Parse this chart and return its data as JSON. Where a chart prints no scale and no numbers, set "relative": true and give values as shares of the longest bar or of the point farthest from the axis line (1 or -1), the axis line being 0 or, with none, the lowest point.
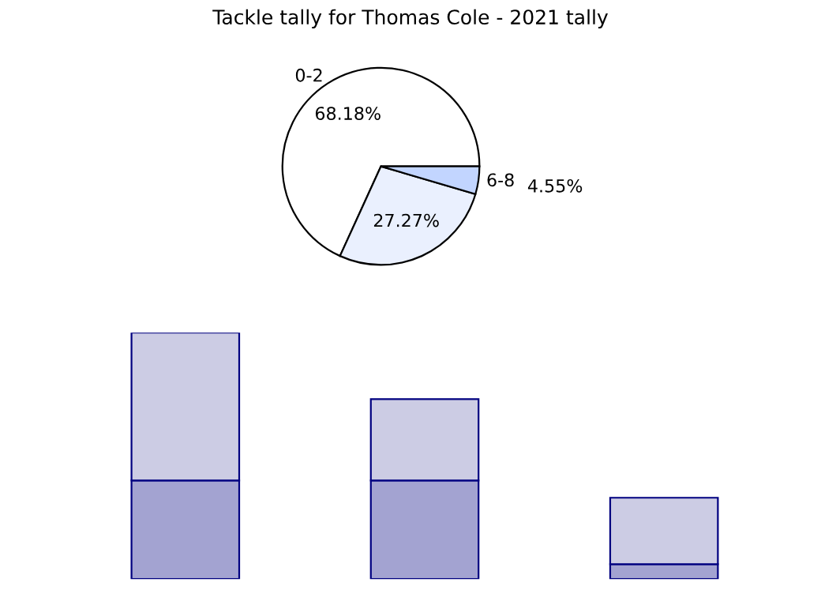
{
  "chart_data": [
    {
      "type": "pie",
      "title": "Tackle tally for Thomas Cole - 2021 tally",
      "categories": [
        "0-2",
        null,
        "6-8"
      ],
      "values": [
        68.18,
        27.27,
        4.55
      ],
      "colors": [
        "#ffffff",
        "#eaf0fe",
        "#c2d5ff"
      ],
      "value_labels": [
        "68.18%",
        "27.27%",
        "4.55%"
      ]
    },
    {
      "type": "bar",
      "relative": true,
      "stacked": true,
      "categories": [
        null,
        null,
        null
      ],
      "series": [
        {
          "color": "#a3a3d1",
          "values": [
            0.4,
            0.4,
            0.06
          ]
        },
        {
          "color": "#ccccE4",
          "values": [
            0.6,
            0.33,
            0.27
          ]
        }
      ]
    }
  ]
}
